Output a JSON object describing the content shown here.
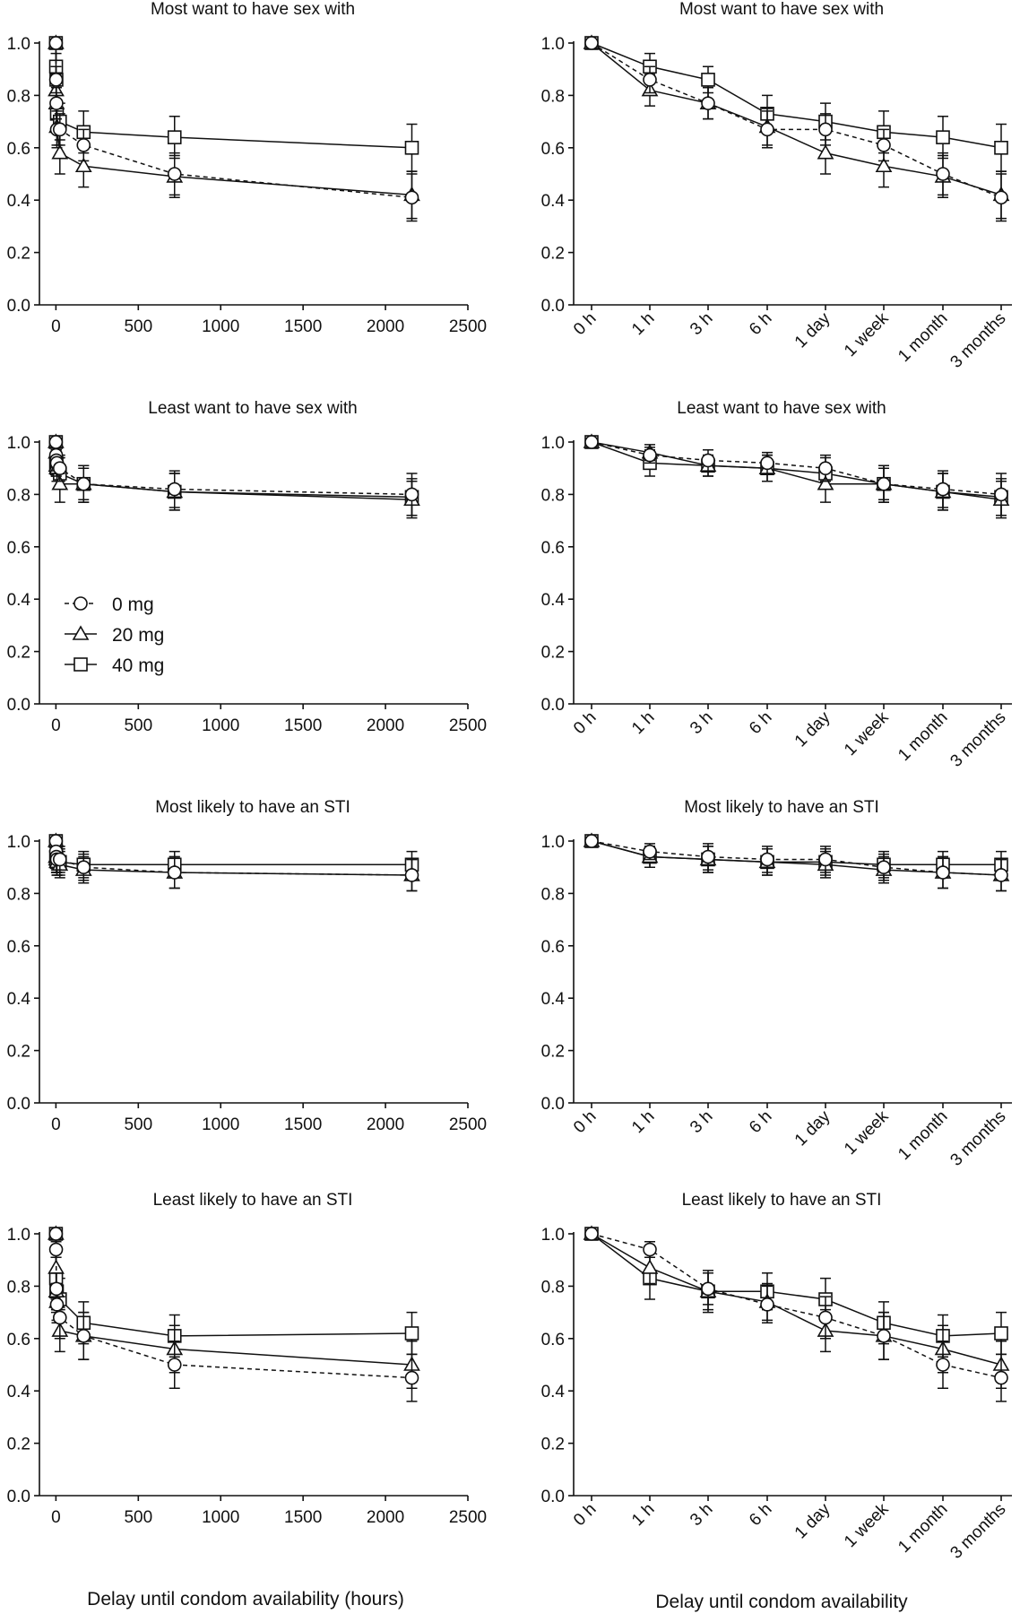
{
  "figure": {
    "xlabel_left": "Delay until condom availability (hours)",
    "xlabel_right": "Delay until condom availability",
    "legend": [
      {
        "label": "0 mg",
        "marker": "circle",
        "dash": true
      },
      {
        "label": "20 mg",
        "marker": "triangle",
        "dash": false
      },
      {
        "label": "40 mg",
        "marker": "square",
        "dash": false
      }
    ]
  },
  "chart_data": [
    {
      "type": "line",
      "title": "Most want to have sex with",
      "xlabel": "",
      "ylabel": "",
      "ylim": [
        0,
        1.0
      ],
      "y_ticks": [
        "0.0",
        "0.2",
        "0.4",
        "0.6",
        "0.8",
        "1.0"
      ],
      "xlim": [
        -100,
        2500
      ],
      "x_ticks": [
        "0",
        "500",
        "1000",
        "1500",
        "2000",
        "2500"
      ],
      "x": [
        0,
        1,
        3,
        6,
        24,
        168,
        720,
        2160
      ],
      "series": [
        {
          "name": "0 mg",
          "values": [
            1.0,
            0.86,
            0.77,
            0.67,
            0.67,
            0.61,
            0.5,
            0.41
          ],
          "err": [
            0,
            0.05,
            0.06,
            0.07,
            0.06,
            0.06,
            0.08,
            0.09
          ]
        },
        {
          "name": "20 mg",
          "values": [
            1.0,
            0.82,
            0.77,
            0.68,
            0.58,
            0.53,
            0.49,
            0.42
          ],
          "err": [
            0,
            0.06,
            0.06,
            0.07,
            0.08,
            0.08,
            0.08,
            0.09
          ]
        },
        {
          "name": "40 mg",
          "values": [
            1.0,
            0.91,
            0.86,
            0.73,
            0.7,
            0.66,
            0.64,
            0.6
          ],
          "err": [
            0,
            0.05,
            0.05,
            0.07,
            0.07,
            0.08,
            0.08,
            0.09
          ]
        }
      ]
    },
    {
      "type": "line",
      "title": "Most want to have sex with",
      "xlabel": "",
      "ylabel": "",
      "ylim": [
        0,
        1.0
      ],
      "y_ticks": [
        "0.0",
        "0.2",
        "0.4",
        "0.6",
        "0.8",
        "1.0"
      ],
      "categories": [
        "0 h",
        "1 h",
        "3 h",
        "6 h",
        "1 day",
        "1 week",
        "1 month",
        "3 months"
      ],
      "series": [
        {
          "name": "0 mg",
          "values": [
            1.0,
            0.86,
            0.77,
            0.67,
            0.67,
            0.61,
            0.5,
            0.41
          ],
          "err": [
            0,
            0.05,
            0.06,
            0.07,
            0.06,
            0.06,
            0.08,
            0.09
          ]
        },
        {
          "name": "20 mg",
          "values": [
            1.0,
            0.82,
            0.77,
            0.68,
            0.58,
            0.53,
            0.49,
            0.42
          ],
          "err": [
            0,
            0.06,
            0.06,
            0.07,
            0.08,
            0.08,
            0.08,
            0.09
          ]
        },
        {
          "name": "40 mg",
          "values": [
            1.0,
            0.91,
            0.86,
            0.73,
            0.7,
            0.66,
            0.64,
            0.6
          ],
          "err": [
            0,
            0.05,
            0.05,
            0.07,
            0.07,
            0.08,
            0.08,
            0.09
          ]
        }
      ]
    },
    {
      "type": "line",
      "title": "Least want to have sex with",
      "xlabel": "",
      "ylabel": "",
      "ylim": [
        0,
        1.0
      ],
      "y_ticks": [
        "0.0",
        "0.2",
        "0.4",
        "0.6",
        "0.8",
        "1.0"
      ],
      "xlim": [
        -100,
        2500
      ],
      "x_ticks": [
        "0",
        "500",
        "1000",
        "1500",
        "2000",
        "2500"
      ],
      "x": [
        0,
        1,
        3,
        6,
        24,
        168,
        720,
        2160
      ],
      "series": [
        {
          "name": "0 mg",
          "values": [
            1.0,
            0.95,
            0.93,
            0.92,
            0.9,
            0.84,
            0.82,
            0.8
          ],
          "err": [
            0,
            0.03,
            0.04,
            0.04,
            0.05,
            0.06,
            0.07,
            0.08
          ]
        },
        {
          "name": "20 mg",
          "values": [
            1.0,
            0.96,
            0.91,
            0.9,
            0.84,
            0.84,
            0.81,
            0.78
          ],
          "err": [
            0,
            0.03,
            0.04,
            0.05,
            0.07,
            0.07,
            0.07,
            0.07
          ]
        },
        {
          "name": "40 mg",
          "values": [
            1.0,
            0.92,
            0.91,
            0.9,
            0.88,
            0.84,
            0.81,
            0.79
          ],
          "err": [
            0,
            0.05,
            0.04,
            0.05,
            0.06,
            0.07,
            0.07,
            0.07
          ]
        }
      ]
    },
    {
      "type": "line",
      "title": "Least want to have sex with",
      "xlabel": "",
      "ylabel": "",
      "ylim": [
        0,
        1.0
      ],
      "y_ticks": [
        "0.0",
        "0.2",
        "0.4",
        "0.6",
        "0.8",
        "1.0"
      ],
      "categories": [
        "0 h",
        "1 h",
        "3 h",
        "6 h",
        "1 day",
        "1 week",
        "1 month",
        "3 months"
      ],
      "series": [
        {
          "name": "0 mg",
          "values": [
            1.0,
            0.95,
            0.93,
            0.92,
            0.9,
            0.84,
            0.82,
            0.8
          ],
          "err": [
            0,
            0.03,
            0.04,
            0.04,
            0.05,
            0.06,
            0.07,
            0.08
          ]
        },
        {
          "name": "20 mg",
          "values": [
            1.0,
            0.96,
            0.91,
            0.9,
            0.84,
            0.84,
            0.81,
            0.78
          ],
          "err": [
            0,
            0.03,
            0.04,
            0.05,
            0.07,
            0.07,
            0.07,
            0.07
          ]
        },
        {
          "name": "40 mg",
          "values": [
            1.0,
            0.92,
            0.91,
            0.9,
            0.88,
            0.84,
            0.81,
            0.79
          ],
          "err": [
            0,
            0.05,
            0.04,
            0.05,
            0.06,
            0.07,
            0.07,
            0.07
          ]
        }
      ]
    },
    {
      "type": "line",
      "title": "Most likely to have an STI",
      "xlabel": "",
      "ylabel": "",
      "ylim": [
        0,
        1.0
      ],
      "y_ticks": [
        "0.0",
        "0.2",
        "0.4",
        "0.6",
        "0.8",
        "1.0"
      ],
      "xlim": [
        -100,
        2500
      ],
      "x_ticks": [
        "0",
        "500",
        "1000",
        "1500",
        "2000",
        "2500"
      ],
      "x": [
        0,
        1,
        3,
        6,
        24,
        168,
        720,
        2160
      ],
      "series": [
        {
          "name": "0 mg",
          "values": [
            1.0,
            0.96,
            0.94,
            0.93,
            0.93,
            0.9,
            0.88,
            0.87
          ],
          "err": [
            0,
            0.03,
            0.05,
            0.05,
            0.05,
            0.05,
            0.06,
            0.06
          ]
        },
        {
          "name": "20 mg",
          "values": [
            1.0,
            0.94,
            0.93,
            0.92,
            0.91,
            0.89,
            0.88,
            0.87
          ],
          "err": [
            0,
            0.04,
            0.05,
            0.05,
            0.05,
            0.05,
            0.06,
            0.06
          ]
        },
        {
          "name": "40 mg",
          "values": [
            1.0,
            0.94,
            0.93,
            0.92,
            0.92,
            0.91,
            0.91,
            0.91
          ],
          "err": [
            0,
            0.04,
            0.05,
            0.05,
            0.05,
            0.05,
            0.05,
            0.05
          ]
        }
      ]
    },
    {
      "type": "line",
      "title": "Most likely to have an STI",
      "xlabel": "",
      "ylabel": "",
      "ylim": [
        0,
        1.0
      ],
      "y_ticks": [
        "0.0",
        "0.2",
        "0.4",
        "0.6",
        "0.8",
        "1.0"
      ],
      "categories": [
        "0 h",
        "1 h",
        "3 h",
        "6 h",
        "1 day",
        "1 week",
        "1 month",
        "3 months"
      ],
      "series": [
        {
          "name": "0 mg",
          "values": [
            1.0,
            0.96,
            0.94,
            0.93,
            0.93,
            0.9,
            0.88,
            0.87
          ],
          "err": [
            0,
            0.03,
            0.05,
            0.05,
            0.05,
            0.05,
            0.06,
            0.06
          ]
        },
        {
          "name": "20 mg",
          "values": [
            1.0,
            0.94,
            0.93,
            0.92,
            0.91,
            0.89,
            0.88,
            0.87
          ],
          "err": [
            0,
            0.04,
            0.05,
            0.05,
            0.05,
            0.05,
            0.06,
            0.06
          ]
        },
        {
          "name": "40 mg",
          "values": [
            1.0,
            0.94,
            0.93,
            0.92,
            0.92,
            0.91,
            0.91,
            0.91
          ],
          "err": [
            0,
            0.04,
            0.05,
            0.05,
            0.05,
            0.05,
            0.05,
            0.05
          ]
        }
      ]
    },
    {
      "type": "line",
      "title": "Least likely to have an STI",
      "xlabel": "",
      "ylabel": "",
      "ylim": [
        0,
        1.0
      ],
      "y_ticks": [
        "0.0",
        "0.2",
        "0.4",
        "0.6",
        "0.8",
        "1.0"
      ],
      "xlim": [
        -100,
        2500
      ],
      "x_ticks": [
        "0",
        "500",
        "1000",
        "1500",
        "2000",
        "2500"
      ],
      "x": [
        0,
        1,
        3,
        6,
        24,
        168,
        720,
        2160
      ],
      "series": [
        {
          "name": "0 mg",
          "values": [
            1.0,
            0.94,
            0.79,
            0.73,
            0.68,
            0.61,
            0.5,
            0.45
          ],
          "err": [
            0,
            0.03,
            0.06,
            0.07,
            0.08,
            0.09,
            0.09,
            0.09
          ]
        },
        {
          "name": "20 mg",
          "values": [
            1.0,
            0.87,
            0.78,
            0.74,
            0.63,
            0.61,
            0.56,
            0.5
          ],
          "err": [
            0,
            0.06,
            0.07,
            0.07,
            0.08,
            0.09,
            0.09,
            0.09
          ]
        },
        {
          "name": "40 mg",
          "values": [
            1.0,
            0.83,
            0.78,
            0.78,
            0.75,
            0.66,
            0.61,
            0.62
          ],
          "err": [
            0,
            0.08,
            0.08,
            0.07,
            0.08,
            0.08,
            0.08,
            0.08
          ]
        }
      ]
    },
    {
      "type": "line",
      "title": "Least likely to have an STI",
      "xlabel": "",
      "ylabel": "",
      "ylim": [
        0,
        1.0
      ],
      "y_ticks": [
        "0.0",
        "0.2",
        "0.4",
        "0.6",
        "0.8",
        "1.0"
      ],
      "categories": [
        "0 h",
        "1 h",
        "3 h",
        "6 h",
        "1 day",
        "1 week",
        "1 month",
        "3 months"
      ],
      "series": [
        {
          "name": "0 mg",
          "values": [
            1.0,
            0.94,
            0.79,
            0.73,
            0.68,
            0.61,
            0.5,
            0.45
          ],
          "err": [
            0,
            0.03,
            0.06,
            0.07,
            0.08,
            0.09,
            0.09,
            0.09
          ]
        },
        {
          "name": "20 mg",
          "values": [
            1.0,
            0.87,
            0.78,
            0.74,
            0.63,
            0.61,
            0.56,
            0.5
          ],
          "err": [
            0,
            0.06,
            0.07,
            0.07,
            0.08,
            0.09,
            0.09,
            0.09
          ]
        },
        {
          "name": "40 mg",
          "values": [
            1.0,
            0.83,
            0.78,
            0.78,
            0.75,
            0.66,
            0.61,
            0.62
          ],
          "err": [
            0,
            0.08,
            0.08,
            0.07,
            0.08,
            0.08,
            0.08,
            0.08
          ]
        }
      ]
    }
  ]
}
